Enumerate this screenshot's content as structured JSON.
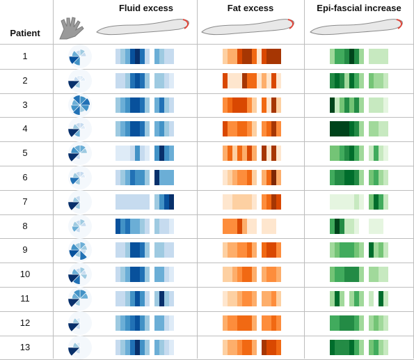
{
  "table": {
    "patient_header": "Patient",
    "columns": [
      "Fluid excess",
      "Fat excess",
      "Epi-fascial increase"
    ],
    "icons": {
      "hand": "hand-icon",
      "arm": "arm-icon",
      "arm_highlight_color": "#e0463a"
    },
    "colors": {
      "fluid": [
        "#f7fbff",
        "#deebf7",
        "#c6dbef",
        "#9ecae1",
        "#6baed6",
        "#4292c6",
        "#2171b5",
        "#08519c",
        "#08306b"
      ],
      "fat": [
        "#fff5eb",
        "#fee6ce",
        "#fdd0a2",
        "#fdae6b",
        "#fd8d3c",
        "#f16913",
        "#d94801",
        "#a63603",
        "#7f2704"
      ],
      "epi": [
        "#f7fcf5",
        "#e5f5e0",
        "#c7e9c0",
        "#a1d99b",
        "#74c476",
        "#41ab5d",
        "#238b45",
        "#006d2c",
        "#00441b"
      ]
    },
    "rows": [
      {
        "id": "1",
        "glyph": [
          3,
          2,
          0,
          0,
          5,
          7,
          4,
          2
        ],
        "fluid": [
          2,
          3,
          4,
          7,
          8,
          6,
          2,
          0,
          4,
          3,
          2,
          2
        ],
        "fat": [
          2,
          3,
          3,
          6,
          7,
          7,
          5,
          1,
          6,
          7,
          7,
          7
        ],
        "epi": [
          3,
          5,
          5,
          6,
          8,
          6,
          3,
          0,
          2,
          2,
          2,
          2
        ]
      },
      {
        "id": "2",
        "glyph": [
          1,
          1,
          0,
          0,
          3,
          8,
          2,
          1
        ],
        "fluid": [
          2,
          2,
          3,
          6,
          7,
          6,
          3,
          0,
          3,
          3,
          2,
          1
        ],
        "fat": [
          6,
          1,
          1,
          1,
          7,
          5,
          5,
          1,
          3,
          1,
          6,
          1
        ],
        "epi": [
          6,
          7,
          6,
          3,
          7,
          5,
          3,
          0,
          4,
          3,
          3,
          2
        ]
      },
      {
        "id": "3",
        "glyph": [
          5,
          6,
          5,
          3,
          6,
          5,
          4,
          6
        ],
        "fluid": [
          3,
          4,
          5,
          7,
          7,
          6,
          3,
          0,
          4,
          6,
          3,
          2
        ],
        "fat": [
          4,
          5,
          6,
          6,
          6,
          4,
          2,
          0,
          5,
          1,
          7,
          2
        ],
        "epi": [
          8,
          2,
          4,
          6,
          4,
          6,
          3,
          0,
          2,
          2,
          2,
          1
        ]
      },
      {
        "id": "4",
        "glyph": [
          2,
          1,
          0,
          0,
          4,
          8,
          3,
          2
        ],
        "fluid": [
          3,
          4,
          5,
          7,
          7,
          6,
          3,
          0,
          4,
          5,
          3,
          2
        ],
        "fat": [
          6,
          4,
          4,
          5,
          5,
          4,
          2,
          0,
          4,
          5,
          7,
          4
        ],
        "epi": [
          8,
          8,
          8,
          8,
          7,
          6,
          3,
          0,
          3,
          3,
          2,
          2
        ]
      },
      {
        "id": "5",
        "glyph": [
          4,
          3,
          0,
          0,
          2,
          8,
          5,
          4
        ],
        "fluid": [
          1,
          1,
          1,
          2,
          5,
          2,
          1,
          0,
          5,
          8,
          5,
          4
        ],
        "fat": [
          3,
          5,
          2,
          5,
          3,
          6,
          3,
          0,
          7,
          1,
          7,
          1
        ],
        "epi": [
          4,
          4,
          5,
          6,
          7,
          5,
          3,
          0,
          2,
          5,
          2,
          1
        ]
      },
      {
        "id": "6",
        "glyph": [
          2,
          1,
          0,
          0,
          3,
          6,
          3,
          2
        ],
        "fluid": [
          2,
          3,
          4,
          6,
          5,
          5,
          3,
          0,
          8,
          4,
          4,
          4
        ],
        "fat": [
          1,
          2,
          3,
          4,
          4,
          5,
          2,
          0,
          3,
          5,
          8,
          3
        ],
        "epi": [
          5,
          6,
          6,
          7,
          7,
          6,
          3,
          0,
          4,
          5,
          3,
          2
        ]
      },
      {
        "id": "7",
        "glyph": [
          0,
          0,
          0,
          0,
          3,
          8,
          3,
          2
        ],
        "fluid": [
          2,
          2,
          2,
          2,
          2,
          2,
          2,
          0,
          3,
          5,
          7,
          8
        ],
        "fat": [
          1,
          1,
          2,
          2,
          2,
          2,
          1,
          0,
          4,
          5,
          7,
          6
        ],
        "epi": [
          1,
          1,
          1,
          1,
          1,
          2,
          1,
          0,
          4,
          7,
          5,
          2
        ]
      },
      {
        "id": "8",
        "glyph": [
          3,
          2,
          0,
          0,
          2,
          4,
          3,
          2
        ],
        "fluid": [
          7,
          5,
          6,
          4,
          4,
          3,
          2,
          0,
          3,
          2,
          2,
          1
        ],
        "fat": [
          4,
          4,
          4,
          6,
          3,
          1,
          1,
          0,
          1,
          1,
          1,
          0
        ],
        "epi": [
          5,
          8,
          6,
          2,
          2,
          1,
          0,
          0,
          1,
          1,
          1,
          0
        ]
      },
      {
        "id": "9",
        "glyph": [
          4,
          3,
          2,
          6,
          3,
          7,
          5,
          3
        ],
        "fluid": [
          2,
          2,
          3,
          7,
          7,
          6,
          3,
          0,
          3,
          3,
          2,
          2
        ],
        "fat": [
          2,
          3,
          3,
          4,
          4,
          5,
          3,
          0,
          5,
          6,
          6,
          4
        ],
        "epi": [
          3,
          4,
          5,
          5,
          5,
          4,
          3,
          0,
          7,
          3,
          4,
          2
        ]
      },
      {
        "id": "10",
        "glyph": [
          3,
          2,
          3,
          0,
          6,
          8,
          4,
          2
        ],
        "fluid": [
          2,
          3,
          4,
          7,
          7,
          6,
          3,
          0,
          4,
          4,
          2,
          1
        ],
        "fat": [
          2,
          2,
          3,
          4,
          5,
          5,
          3,
          0,
          3,
          4,
          4,
          3
        ],
        "epi": [
          4,
          5,
          5,
          6,
          6,
          6,
          3,
          0,
          3,
          3,
          2,
          2
        ]
      },
      {
        "id": "11",
        "glyph": [
          5,
          4,
          0,
          0,
          3,
          8,
          4,
          5
        ],
        "fluid": [
          2,
          2,
          3,
          5,
          7,
          5,
          2,
          0,
          3,
          8,
          3,
          2
        ],
        "fat": [
          1,
          2,
          2,
          3,
          4,
          4,
          3,
          0,
          3,
          3,
          4,
          2
        ],
        "epi": [
          3,
          7,
          3,
          0,
          3,
          5,
          3,
          0,
          2,
          0,
          7,
          2
        ]
      },
      {
        "id": "12",
        "glyph": [
          0,
          0,
          0,
          0,
          2,
          8,
          3,
          1
        ],
        "fluid": [
          3,
          4,
          5,
          6,
          7,
          5,
          3,
          0,
          4,
          4,
          2,
          1
        ],
        "fat": [
          3,
          4,
          4,
          5,
          5,
          5,
          3,
          0,
          4,
          4,
          5,
          4
        ],
        "epi": [
          5,
          5,
          6,
          6,
          6,
          5,
          3,
          0,
          3,
          4,
          3,
          2
        ]
      },
      {
        "id": "13",
        "glyph": [
          0,
          0,
          0,
          0,
          2,
          8,
          3,
          1
        ],
        "fluid": [
          2,
          3,
          4,
          6,
          8,
          5,
          3,
          0,
          4,
          3,
          2,
          1
        ],
        "fat": [
          2,
          3,
          3,
          4,
          5,
          5,
          3,
          0,
          7,
          6,
          6,
          5
        ],
        "epi": [
          7,
          6,
          6,
          6,
          7,
          5,
          3,
          0,
          4,
          5,
          3,
          2
        ]
      }
    ]
  }
}
